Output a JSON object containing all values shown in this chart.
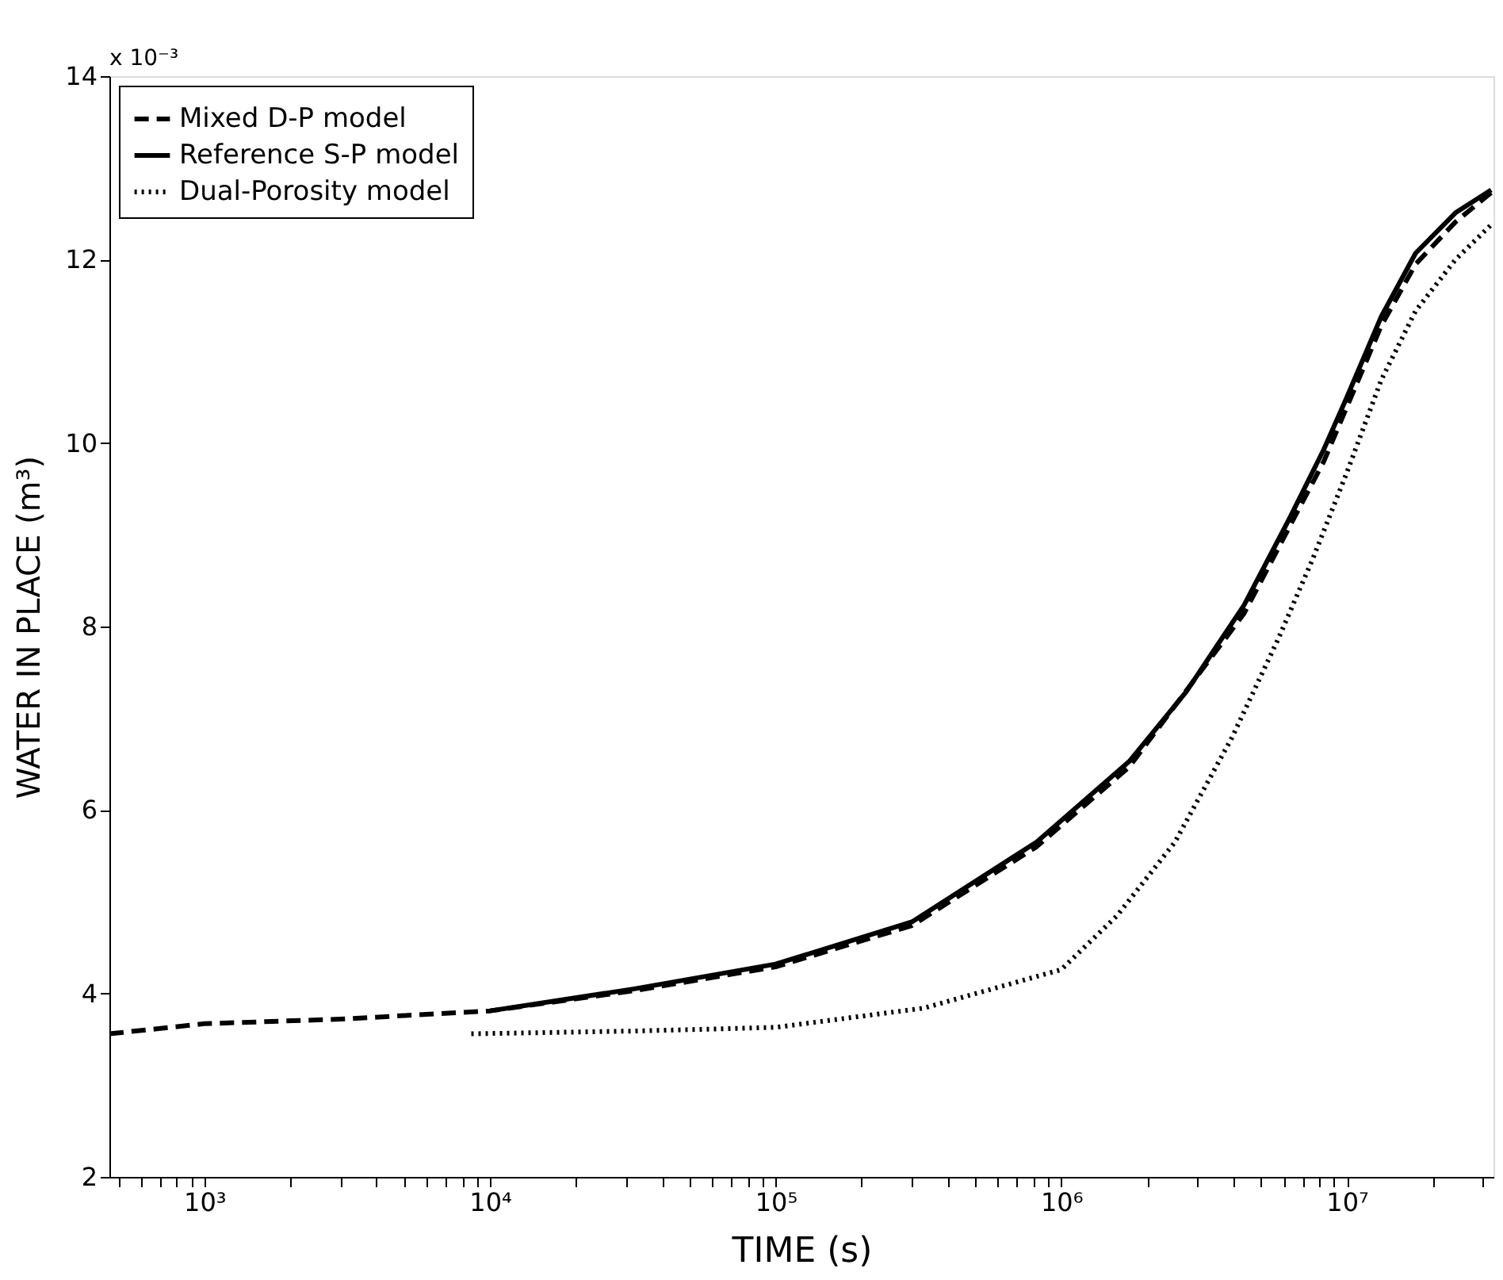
{
  "chart_data": {
    "type": "line",
    "xlabel": "TIME (s)",
    "ylabel": "WATER IN PLACE (m³)",
    "log": "x",
    "grid": false,
    "legend": "top left",
    "marker": "none",
    "annotations": [
      "x 10⁻³"
    ],
    "xlim": [
      465,
      32600000
    ],
    "xticks": [
      {
        "value": 500,
        "label": null
      },
      {
        "value": 600,
        "label": null
      },
      {
        "value": 700,
        "label": null
      },
      {
        "value": 800,
        "label": null
      },
      {
        "value": 900,
        "label": null
      },
      {
        "value": 1000,
        "label": "10³"
      },
      {
        "value": 2000,
        "label": null
      },
      {
        "value": 3000,
        "label": null
      },
      {
        "value": 4000,
        "label": null
      },
      {
        "value": 5000,
        "label": null
      },
      {
        "value": 6000,
        "label": null
      },
      {
        "value": 7000,
        "label": null
      },
      {
        "value": 8000,
        "label": null
      },
      {
        "value": 9000,
        "label": null
      },
      {
        "value": 10000,
        "label": "10⁴"
      },
      {
        "value": 20000,
        "label": null
      },
      {
        "value": 30000,
        "label": null
      },
      {
        "value": 40000,
        "label": null
      },
      {
        "value": 50000,
        "label": null
      },
      {
        "value": 60000,
        "label": null
      },
      {
        "value": 70000,
        "label": null
      },
      {
        "value": 80000,
        "label": null
      },
      {
        "value": 90000,
        "label": null
      },
      {
        "value": 100000,
        "label": "10⁵"
      },
      {
        "value": 200000,
        "label": null
      },
      {
        "value": 300000,
        "label": null
      },
      {
        "value": 400000,
        "label": null
      },
      {
        "value": 500000,
        "label": null
      },
      {
        "value": 600000,
        "label": null
      },
      {
        "value": 700000,
        "label": null
      },
      {
        "value": 800000,
        "label": null
      },
      {
        "value": 900000,
        "label": null
      },
      {
        "value": 1000000,
        "label": "10⁶"
      },
      {
        "value": 2000000,
        "label": null
      },
      {
        "value": 3000000,
        "label": null
      },
      {
        "value": 4000000,
        "label": null
      },
      {
        "value": 5000000,
        "label": null
      },
      {
        "value": 6000000,
        "label": null
      },
      {
        "value": 7000000,
        "label": null
      },
      {
        "value": 8000000,
        "label": null
      },
      {
        "value": 9000000,
        "label": null
      },
      {
        "value": 10000000,
        "label": "10⁷"
      },
      {
        "value": 20000000,
        "label": null
      },
      {
        "value": 30000000,
        "label": null
      }
    ],
    "ylim": [
      2,
      14
    ],
    "yticks": [
      2,
      4,
      6,
      8,
      10,
      12,
      14
    ],
    "series": [
      {
        "name": "Mixed D-P model",
        "color": "#000000",
        "line_style": "dashed",
        "x": [
          465,
          1000,
          3000,
          10000,
          32000,
          100000,
          300000,
          820000,
          1730000,
          4360000,
          8300000,
          13200000,
          17400000,
          24000000,
          32000000
        ],
        "values": [
          3.56,
          3.67,
          3.72,
          3.81,
          4.03,
          4.29,
          4.74,
          5.6,
          6.47,
          8.14,
          9.8,
          11.28,
          11.95,
          12.41,
          12.73
        ]
      },
      {
        "name": "Reference S-P model",
        "color": "#000000",
        "line_style": "solid",
        "x": [
          10000,
          32000,
          100000,
          300000,
          820000,
          1730000,
          2740000,
          4360000,
          6300000,
          8300000,
          10000000,
          13200000,
          17400000,
          24000000,
          32000000
        ],
        "values": [
          3.81,
          4.05,
          4.32,
          4.78,
          5.65,
          6.53,
          7.29,
          8.23,
          9.18,
          9.93,
          10.5,
          11.38,
          12.07,
          12.51,
          12.76
        ]
      },
      {
        "name": "Dual-Porosity model",
        "color": "#000000",
        "line_style": "dotted",
        "x": [
          8600,
          32000,
          100000,
          330000,
          1000000,
          1570000,
          2500000,
          3960000,
          5740000,
          7600000,
          10000000,
          13200000,
          17400000,
          24000000,
          32000000
        ],
        "values": [
          3.56,
          3.59,
          3.63,
          3.84,
          4.26,
          4.85,
          5.65,
          6.79,
          7.86,
          8.74,
          9.68,
          10.69,
          11.44,
          12.0,
          12.38
        ]
      }
    ]
  }
}
